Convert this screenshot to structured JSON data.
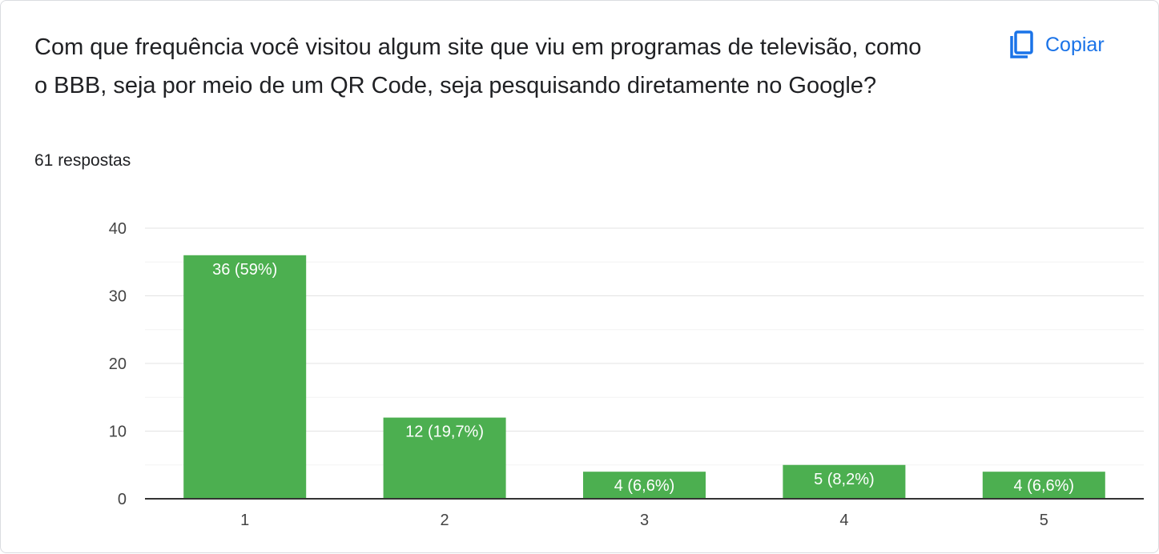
{
  "question": {
    "text": "Com que frequência você visitou algum site que viu em programas de televisão, como o BBB, seja por meio de um QR Code, seja pesquisando diretamente no Google?",
    "responses": "61 respostas"
  },
  "copy_button": {
    "label": "Copiar",
    "icon": "copy-icon",
    "color": "#1a73e8"
  },
  "chart_data": {
    "type": "bar",
    "categories": [
      "1",
      "2",
      "3",
      "4",
      "5"
    ],
    "values": [
      36,
      12,
      4,
      5,
      4
    ],
    "data_labels": [
      "36 (59%)",
      "12 (19,7%)",
      "4 (6,6%)",
      "5 (8,2%)",
      "4 (6,6%)"
    ],
    "yticks": [
      0,
      10,
      20,
      30,
      40
    ],
    "ylim": [
      0,
      40
    ],
    "bar_color": "#4caf50",
    "grid": true
  }
}
